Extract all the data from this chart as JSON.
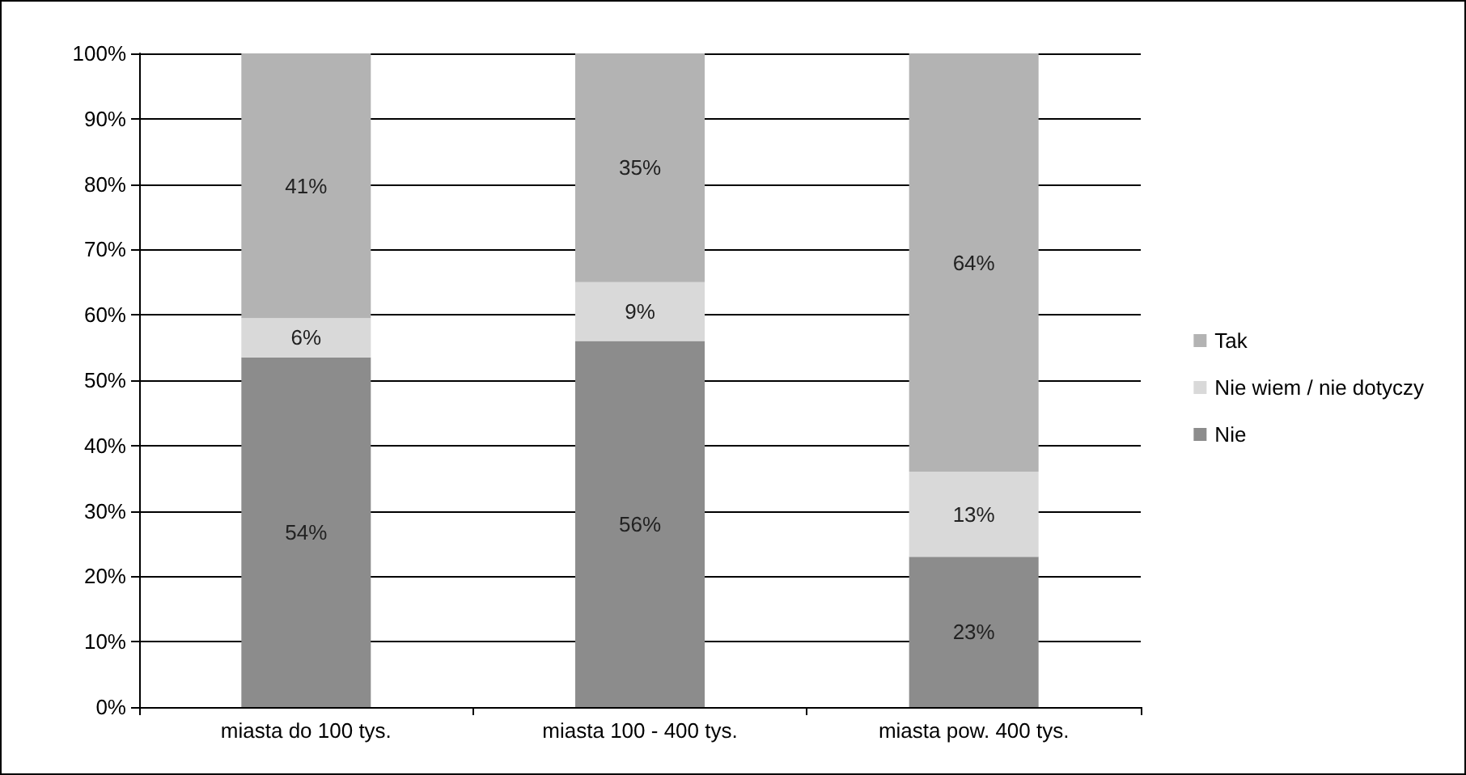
{
  "chart_data": {
    "type": "bar",
    "stacked": true,
    "categories": [
      "miasta do 100 tys.",
      "miasta 100 - 400 tys.",
      "miasta pow. 400 tys."
    ],
    "series": [
      {
        "name": "Nie",
        "color": "#8c8c8c",
        "values": [
          53.5,
          56,
          23
        ],
        "value_labels": [
          "54%",
          "56%",
          "23%"
        ]
      },
      {
        "name": "Nie wiem / nie dotyczy",
        "color": "#d9d9d9",
        "values": [
          6,
          9,
          13
        ],
        "value_labels": [
          "6%",
          "9%",
          "13%"
        ]
      },
      {
        "name": "Tak",
        "color": "#b3b3b3",
        "values": [
          40.5,
          35,
          64
        ],
        "value_labels": [
          "41%",
          "35%",
          "64%"
        ]
      }
    ],
    "ylim": [
      0,
      100
    ],
    "yticks": [
      {
        "value": 0,
        "label": "0%"
      },
      {
        "value": 10,
        "label": "10%"
      },
      {
        "value": 20,
        "label": "20%"
      },
      {
        "value": 30,
        "label": "30%"
      },
      {
        "value": 40,
        "label": "40%"
      },
      {
        "value": 50,
        "label": "50%"
      },
      {
        "value": 60,
        "label": "60%"
      },
      {
        "value": 70,
        "label": "70%"
      },
      {
        "value": 80,
        "label": "80%"
      },
      {
        "value": 90,
        "label": "90%"
      },
      {
        "value": 100,
        "label": "100%"
      }
    ],
    "grid": "y",
    "legend": "right"
  }
}
